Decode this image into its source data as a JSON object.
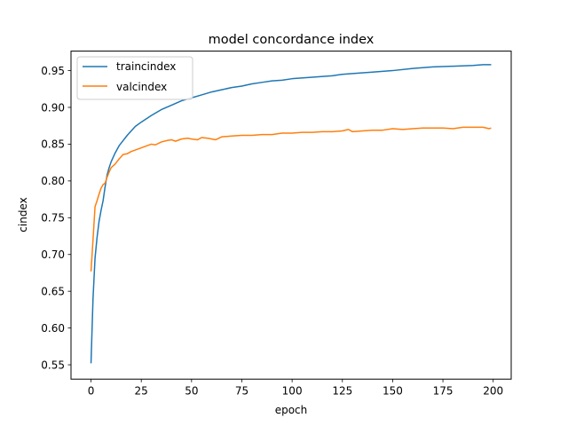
{
  "chart_data": {
    "type": "line",
    "title": "model concordance index",
    "xlabel": "epoch",
    "ylabel": "cindex",
    "xlim": [
      -9.95,
      208.95
    ],
    "ylim": [
      0.5305,
      0.9765
    ],
    "xticks": [
      0,
      25,
      50,
      75,
      100,
      125,
      150,
      175,
      200
    ],
    "yticks": [
      0.55,
      0.6,
      0.65,
      0.7,
      0.75,
      0.8,
      0.85,
      0.9,
      0.95
    ],
    "ytick_labels": [
      "0.55",
      "0.60",
      "0.65",
      "0.70",
      "0.75",
      "0.80",
      "0.85",
      "0.90",
      "0.95"
    ],
    "legend_position": "upper-left",
    "grid": false,
    "series": [
      {
        "name": "traincindex",
        "color": "#1f77b4",
        "points": [
          [
            0,
            0.552
          ],
          [
            1,
            0.64
          ],
          [
            2,
            0.695
          ],
          [
            3,
            0.723
          ],
          [
            4,
            0.745
          ],
          [
            5,
            0.76
          ],
          [
            6,
            0.773
          ],
          [
            7,
            0.792
          ],
          [
            8,
            0.808
          ],
          [
            9,
            0.818
          ],
          [
            10,
            0.826
          ],
          [
            12,
            0.838
          ],
          [
            14,
            0.848
          ],
          [
            16,
            0.855
          ],
          [
            18,
            0.862
          ],
          [
            20,
            0.868
          ],
          [
            22,
            0.874
          ],
          [
            25,
            0.88
          ],
          [
            30,
            0.889
          ],
          [
            35,
            0.897
          ],
          [
            40,
            0.903
          ],
          [
            45,
            0.909
          ],
          [
            50,
            0.913
          ],
          [
            55,
            0.917
          ],
          [
            60,
            0.921
          ],
          [
            65,
            0.924
          ],
          [
            70,
            0.927
          ],
          [
            75,
            0.929
          ],
          [
            80,
            0.932
          ],
          [
            85,
            0.934
          ],
          [
            90,
            0.936
          ],
          [
            95,
            0.937
          ],
          [
            100,
            0.939
          ],
          [
            110,
            0.941
          ],
          [
            120,
            0.943
          ],
          [
            125,
            0.945
          ],
          [
            130,
            0.946
          ],
          [
            140,
            0.948
          ],
          [
            150,
            0.95
          ],
          [
            160,
            0.953
          ],
          [
            170,
            0.955
          ],
          [
            180,
            0.956
          ],
          [
            190,
            0.957
          ],
          [
            195,
            0.958
          ],
          [
            199,
            0.958
          ]
        ]
      },
      {
        "name": "valcindex",
        "color": "#ff7f0e",
        "points": [
          [
            0,
            0.677
          ],
          [
            1,
            0.72
          ],
          [
            2,
            0.765
          ],
          [
            3,
            0.773
          ],
          [
            4,
            0.782
          ],
          [
            5,
            0.79
          ],
          [
            6,
            0.795
          ],
          [
            7,
            0.797
          ],
          [
            8,
            0.805
          ],
          [
            9,
            0.812
          ],
          [
            10,
            0.818
          ],
          [
            12,
            0.823
          ],
          [
            14,
            0.83
          ],
          [
            16,
            0.836
          ],
          [
            18,
            0.837
          ],
          [
            20,
            0.84
          ],
          [
            22,
            0.842
          ],
          [
            25,
            0.845
          ],
          [
            28,
            0.848
          ],
          [
            30,
            0.85
          ],
          [
            32,
            0.849
          ],
          [
            35,
            0.853
          ],
          [
            38,
            0.855
          ],
          [
            40,
            0.856
          ],
          [
            42,
            0.854
          ],
          [
            45,
            0.857
          ],
          [
            48,
            0.858
          ],
          [
            50,
            0.857
          ],
          [
            53,
            0.856
          ],
          [
            55,
            0.859
          ],
          [
            58,
            0.858
          ],
          [
            60,
            0.857
          ],
          [
            62,
            0.856
          ],
          [
            65,
            0.86
          ],
          [
            70,
            0.861
          ],
          [
            75,
            0.862
          ],
          [
            80,
            0.862
          ],
          [
            85,
            0.863
          ],
          [
            90,
            0.863
          ],
          [
            95,
            0.865
          ],
          [
            100,
            0.865
          ],
          [
            105,
            0.866
          ],
          [
            110,
            0.866
          ],
          [
            115,
            0.867
          ],
          [
            120,
            0.867
          ],
          [
            125,
            0.868
          ],
          [
            128,
            0.87
          ],
          [
            130,
            0.867
          ],
          [
            135,
            0.868
          ],
          [
            140,
            0.869
          ],
          [
            145,
            0.869
          ],
          [
            150,
            0.871
          ],
          [
            155,
            0.87
          ],
          [
            160,
            0.871
          ],
          [
            165,
            0.872
          ],
          [
            170,
            0.872
          ],
          [
            175,
            0.872
          ],
          [
            180,
            0.871
          ],
          [
            185,
            0.873
          ],
          [
            190,
            0.873
          ],
          [
            195,
            0.873
          ],
          [
            198,
            0.871
          ],
          [
            199,
            0.872
          ]
        ]
      }
    ]
  }
}
